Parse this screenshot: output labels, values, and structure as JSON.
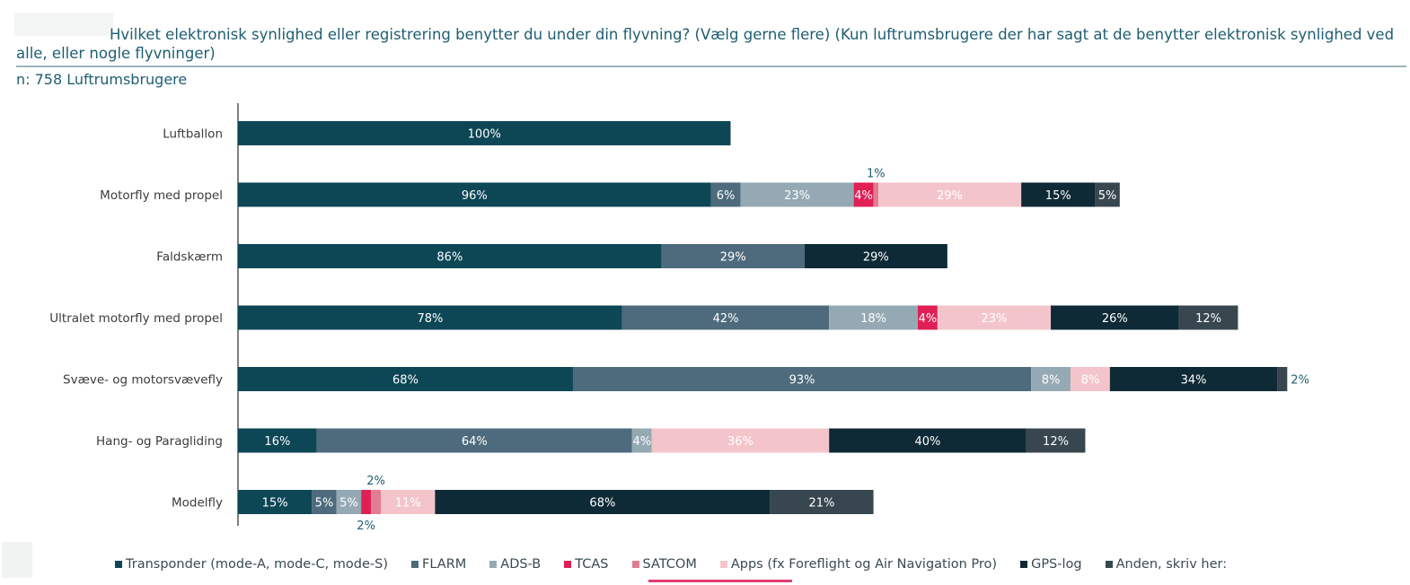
{
  "title": "Hvilket elektronisk synlighed eller registrering benytter du under din flyvning? (Vælg gerne flere) (Kun luftrumsbrugere der har sagt at de benytter elektronisk synlighed ved alle, eller nogle flyvninger)",
  "subtitle": "n: 758 Luftrumsbrugere",
  "colors": {
    "transponder": "#0d4756",
    "flarm": "#4d6b7c",
    "adsb": "#95a9b4",
    "tcas": "#e01f55",
    "satcom": "#e07d91",
    "apps": "#f3c5cb",
    "gpslog": "#0e2a36",
    "anden": "#38474f"
  },
  "chart_data": {
    "type": "bar",
    "orientation": "horizontal",
    "stacked": true,
    "categories": [
      "Luftballon",
      "Motorfly med propel",
      "Faldskærm",
      "Ultralet motorfly med propel",
      "Svæve- og motorsvævefly",
      "Hang- og Paragliding",
      "Modelfly"
    ],
    "series": [
      {
        "name": "Transponder (mode-A, mode-C, mode-S)",
        "key": "transponder",
        "values": [
          100,
          96,
          86,
          78,
          68,
          16,
          15
        ]
      },
      {
        "name": "FLARM",
        "key": "flarm",
        "values": [
          0,
          6,
          29,
          42,
          93,
          64,
          5
        ]
      },
      {
        "name": "ADS-B",
        "key": "adsb",
        "values": [
          0,
          23,
          0,
          18,
          8,
          4,
          5
        ]
      },
      {
        "name": "TCAS",
        "key": "tcas",
        "values": [
          0,
          4,
          0,
          4,
          0,
          0,
          2
        ]
      },
      {
        "name": "SATCOM",
        "key": "satcom",
        "values": [
          0,
          1,
          0,
          0,
          0,
          0,
          2
        ]
      },
      {
        "name": "Apps (fx Foreflight og Air Navigation Pro)",
        "key": "apps",
        "values": [
          0,
          29,
          0,
          23,
          8,
          36,
          11
        ]
      },
      {
        "name": "GPS-log",
        "key": "gpslog",
        "values": [
          0,
          15,
          29,
          26,
          34,
          40,
          68
        ]
      },
      {
        "name": "Anden, skriv her:",
        "key": "anden",
        "values": [
          0,
          5,
          0,
          12,
          2,
          12,
          21
        ]
      }
    ],
    "legend_position": "bottom",
    "grid": false
  }
}
